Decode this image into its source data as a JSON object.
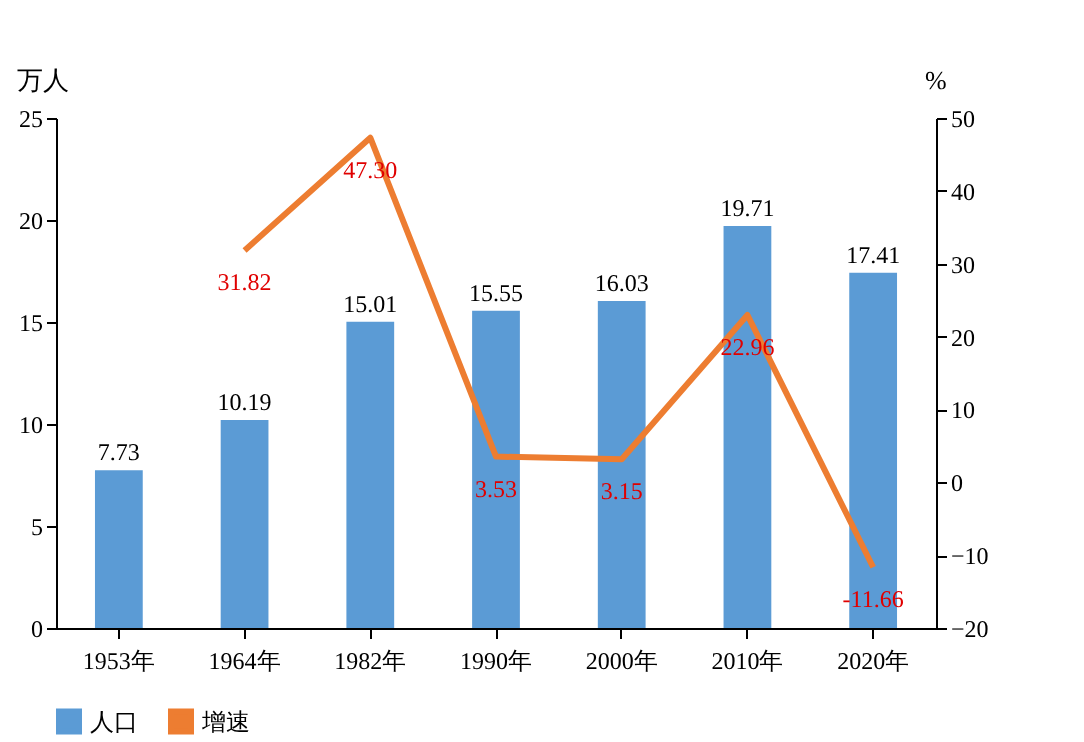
{
  "chart_data": {
    "type": "bar",
    "ylabel": "万人",
    "y2label": "%",
    "categories": [
      "1953年",
      "1964年",
      "1982年",
      "1990年",
      "2000年",
      "2010年",
      "2020年"
    ],
    "series": [
      {
        "name": "人口",
        "color": "#5b9bd5",
        "values": [
          7.73,
          10.19,
          15.01,
          15.55,
          16.03,
          19.71,
          17.41
        ],
        "value_labels": [
          "7.73",
          "10.19",
          "15.01",
          "15.55",
          "16.03",
          "19.71",
          "17.41"
        ]
      },
      {
        "name": "增速",
        "type": "line",
        "axis": "y2",
        "color": "#ed7d31",
        "values": [
          null,
          31.82,
          47.3,
          3.53,
          3.15,
          22.96,
          -11.66
        ],
        "value_labels": [
          null,
          "31.82",
          "47.30",
          "3.53",
          "3.15",
          "22.96",
          "-11.66"
        ]
      }
    ],
    "ylim": [
      0,
      25
    ],
    "yticks": [
      0,
      5,
      10,
      15,
      20,
      25
    ],
    "y2lim": [
      -20,
      50
    ],
    "y2ticks": [
      -20,
      -10,
      0,
      10,
      20,
      30,
      40,
      50
    ],
    "grid": false,
    "legend": "bottom"
  }
}
